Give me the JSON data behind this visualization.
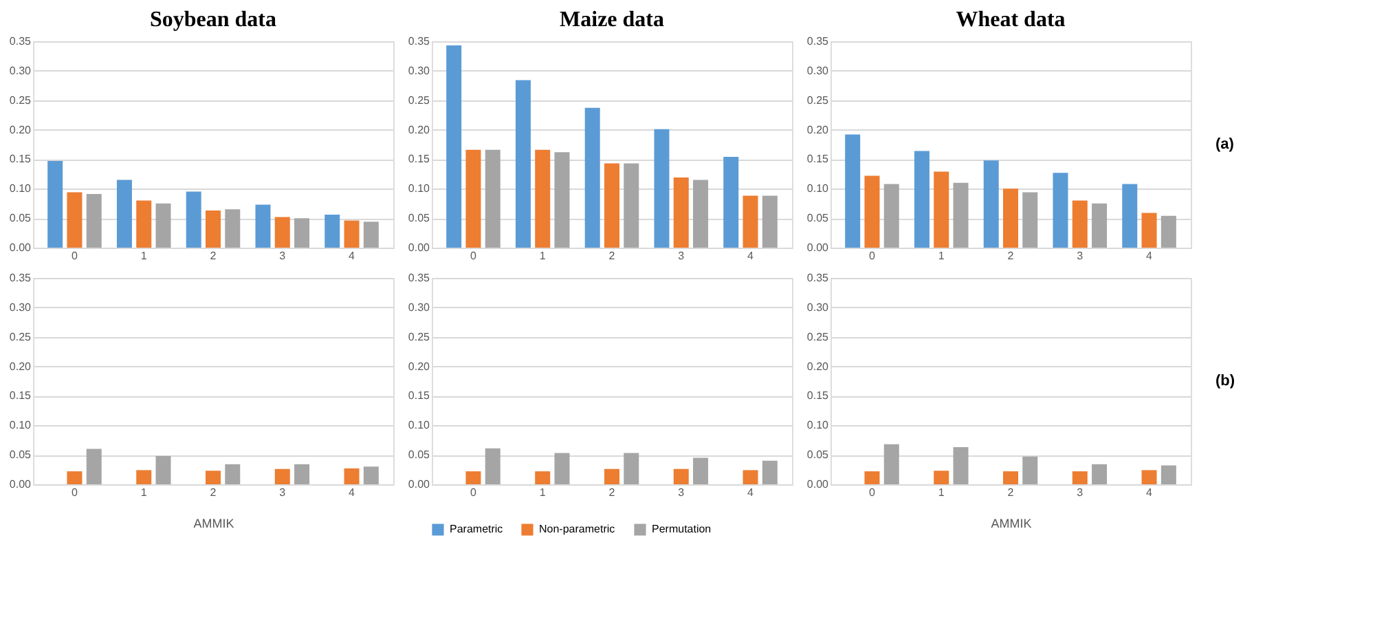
{
  "chart_data": [
    {
      "type": "bar",
      "title": "Soybean data",
      "categories": [
        "0",
        "1",
        "2",
        "3",
        "4"
      ],
      "ylim": [
        0,
        0.35
      ],
      "yticks": [
        {
          "value": 0,
          "label": "0.00"
        },
        0.05,
        {
          "value": 0.1,
          "label": "0.10"
        },
        0.15,
        {
          "value": 0.2,
          "label": "0.20"
        },
        0.25,
        {
          "value": 0.3,
          "label": "0.30"
        },
        0.35
      ],
      "grid": "y",
      "series": [
        {
          "color": "#5b9bd5",
          "values": [
            0.147,
            0.115,
            0.095,
            0.073,
            0.056
          ]
        },
        {
          "color": "#ed7d31",
          "values": [
            0.094,
            0.08,
            0.063,
            0.052,
            0.046
          ]
        },
        {
          "color": "#a5a5a5",
          "values": [
            0.091,
            0.075,
            0.065,
            0.05,
            0.044
          ]
        }
      ]
    },
    {
      "type": "bar",
      "title": "Maize data",
      "categories": [
        "0",
        "1",
        "2",
        "3",
        "4"
      ],
      "ylim": [
        0,
        0.35
      ],
      "yticks": [
        {
          "value": 0,
          "label": "0.00"
        },
        0.05,
        {
          "value": 0.1,
          "label": "0.10"
        },
        0.15,
        {
          "value": 0.2,
          "label": "0.20"
        },
        0.25,
        {
          "value": 0.3,
          "label": "0.30"
        },
        0.35
      ],
      "grid": "y",
      "series": [
        {
          "color": "#5b9bd5",
          "values": [
            0.343,
            0.284,
            0.237,
            0.201,
            0.154
          ]
        },
        {
          "color": "#ed7d31",
          "values": [
            0.166,
            0.166,
            0.143,
            0.119,
            0.088
          ]
        },
        {
          "color": "#a5a5a5",
          "values": [
            0.166,
            0.162,
            0.143,
            0.115,
            0.088
          ]
        }
      ]
    },
    {
      "type": "bar",
      "title": "Wheat data",
      "categories": [
        "0",
        "1",
        "2",
        "3",
        "4"
      ],
      "ylim": [
        0,
        0.35
      ],
      "yticks": [
        {
          "value": 0,
          "label": "0.00"
        },
        0.05,
        {
          "value": 0.1,
          "label": "0.10"
        },
        0.15,
        {
          "value": 0.2,
          "label": "0.20"
        },
        0.25,
        {
          "value": 0.3,
          "label": "0.30"
        },
        0.35
      ],
      "grid": "y",
      "annotations": [
        "(a)"
      ],
      "series": [
        {
          "color": "#5b9bd5",
          "values": [
            0.192,
            0.164,
            0.148,
            0.127,
            0.108
          ]
        },
        {
          "color": "#ed7d31",
          "values": [
            0.122,
            0.129,
            0.1,
            0.08,
            0.059
          ]
        },
        {
          "color": "#a5a5a5",
          "values": [
            0.108,
            0.11,
            0.094,
            0.075,
            0.054
          ]
        }
      ]
    },
    {
      "type": "bar",
      "xlabel": "AMMIK",
      "categories": [
        "0",
        "1",
        "2",
        "3",
        "4"
      ],
      "ylim": [
        0,
        0.35
      ],
      "yticks": [
        {
          "value": 0,
          "label": "0.00"
        },
        0.05,
        {
          "value": 0.1,
          "label": "0.10"
        },
        0.15,
        {
          "value": 0.2,
          "label": "0.20"
        },
        0.25,
        {
          "value": 0.3,
          "label": "0.30"
        },
        0.35
      ],
      "grid": "y",
      "series": [
        {
          "values": [
            null,
            null,
            null,
            null,
            null
          ]
        },
        {
          "color": "#ed7d31",
          "values": [
            0.022,
            0.024,
            0.023,
            0.026,
            0.027
          ]
        },
        {
          "color": "#a5a5a5",
          "values": [
            0.06,
            0.048,
            0.034,
            0.034,
            0.03
          ]
        }
      ]
    },
    {
      "type": "bar",
      "categories": [
        "0",
        "1",
        "2",
        "3",
        "4"
      ],
      "ylim": [
        0,
        0.35
      ],
      "yticks": [
        {
          "value": 0,
          "label": "0.00"
        },
        0.05,
        {
          "value": 0.1,
          "label": "0.10"
        },
        0.15,
        {
          "value": 0.2,
          "label": "0.20"
        },
        0.25,
        {
          "value": 0.3,
          "label": "0.30"
        },
        0.35
      ],
      "grid": "y",
      "legend": "bottom",
      "series": [
        {
          "name": "Parametric",
          "color": "#5b9bd5",
          "values": [
            null,
            null,
            null,
            null,
            null
          ]
        },
        {
          "name": "Non-parametric",
          "color": "#ed7d31",
          "values": [
            0.022,
            0.022,
            0.026,
            0.026,
            0.024
          ]
        },
        {
          "name": "Permutation",
          "color": "#a5a5a5",
          "values": [
            0.061,
            0.053,
            0.053,
            0.045,
            0.04
          ]
        }
      ]
    },
    {
      "type": "bar",
      "xlabel": "AMMIK",
      "categories": [
        "0",
        "1",
        "2",
        "3",
        "4"
      ],
      "ylim": [
        0,
        0.35
      ],
      "yticks": [
        {
          "value": 0,
          "label": "0.00"
        },
        0.05,
        {
          "value": 0.1,
          "label": "0.10"
        },
        0.15,
        {
          "value": 0.2,
          "label": "0.20"
        },
        0.25,
        {
          "value": 0.3,
          "label": "0.30"
        },
        0.35
      ],
      "grid": "y",
      "annotations": [
        "(b)"
      ],
      "series": [
        {
          "values": [
            null,
            null,
            null,
            null,
            null
          ]
        },
        {
          "color": "#ed7d31",
          "values": [
            0.022,
            0.023,
            0.022,
            0.022,
            0.024
          ]
        },
        {
          "color": "#a5a5a5",
          "values": [
            0.068,
            0.063,
            0.047,
            0.034,
            0.032
          ]
        }
      ]
    }
  ]
}
